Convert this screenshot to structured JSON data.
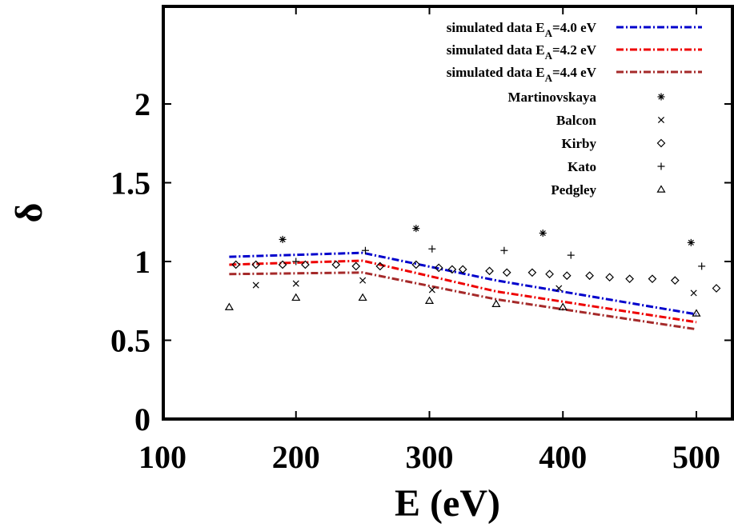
{
  "chart_data": {
    "type": "scatter",
    "xlabel": "E (eV)",
    "ylabel": "δ",
    "xlim": [
      100,
      520
    ],
    "ylim": [
      0,
      2.5
    ],
    "xticks": [
      "100",
      "200",
      "300",
      "400",
      "500"
    ],
    "yticks": [
      "0",
      "0.5",
      "1",
      "1.5",
      "2"
    ],
    "xtick_values": [
      100,
      200,
      300,
      400,
      500
    ],
    "ytick_values": [
      0,
      0.5,
      1,
      1.5,
      2
    ],
    "grid": false,
    "legend_position": "top-right",
    "series": [
      {
        "name_prefix": "simulated data E",
        "name_sub": "A",
        "name_suffix": "=4.0 eV",
        "kind": "line",
        "color": "#0000cc",
        "x": [
          150,
          250,
          350,
          500
        ],
        "y": [
          1.03,
          1.055,
          0.88,
          0.665
        ]
      },
      {
        "name_prefix": "simulated data E",
        "name_sub": "A",
        "name_suffix": "=4.2 eV",
        "kind": "line",
        "color": "#ee0000",
        "x": [
          150,
          250,
          350,
          500
        ],
        "y": [
          0.98,
          1.005,
          0.81,
          0.615
        ]
      },
      {
        "name_prefix": "simulated data E",
        "name_sub": "A",
        "name_suffix": "=4.4 eV",
        "kind": "line",
        "color": "#a52a2a",
        "x": [
          150,
          250,
          350,
          500
        ],
        "y": [
          0.92,
          0.93,
          0.76,
          0.57
        ]
      },
      {
        "name": "Martinovskaya",
        "kind": "points",
        "marker": "asterisk",
        "x": [
          190,
          290,
          385,
          496
        ],
        "y": [
          1.14,
          1.21,
          1.18,
          1.12
        ]
      },
      {
        "name": "Balcon",
        "kind": "points",
        "marker": "cross",
        "x": [
          170,
          200,
          250,
          302,
          397,
          498
        ],
        "y": [
          0.85,
          0.86,
          0.88,
          0.82,
          0.83,
          0.8
        ]
      },
      {
        "name": "Kirby",
        "kind": "points",
        "marker": "diamond",
        "x": [
          155,
          170,
          190,
          207,
          230,
          245,
          263,
          290,
          307,
          317,
          325,
          345,
          358,
          377,
          390,
          403,
          420,
          435,
          450,
          467,
          484,
          515
        ],
        "y": [
          0.98,
          0.98,
          0.98,
          0.98,
          0.98,
          0.97,
          0.97,
          0.98,
          0.96,
          0.95,
          0.95,
          0.94,
          0.93,
          0.93,
          0.92,
          0.91,
          0.91,
          0.9,
          0.89,
          0.89,
          0.88,
          0.83
        ]
      },
      {
        "name": "Kato",
        "kind": "points",
        "marker": "plus",
        "x": [
          200,
          252,
          302,
          356,
          406,
          504
        ],
        "y": [
          1.0,
          1.07,
          1.08,
          1.07,
          1.04,
          0.97
        ]
      },
      {
        "name": "Pedgley",
        "kind": "points",
        "marker": "triangle",
        "x": [
          150,
          200,
          250,
          300,
          350,
          400,
          500
        ],
        "y": [
          0.71,
          0.77,
          0.77,
          0.75,
          0.73,
          0.71,
          0.67
        ]
      }
    ]
  }
}
